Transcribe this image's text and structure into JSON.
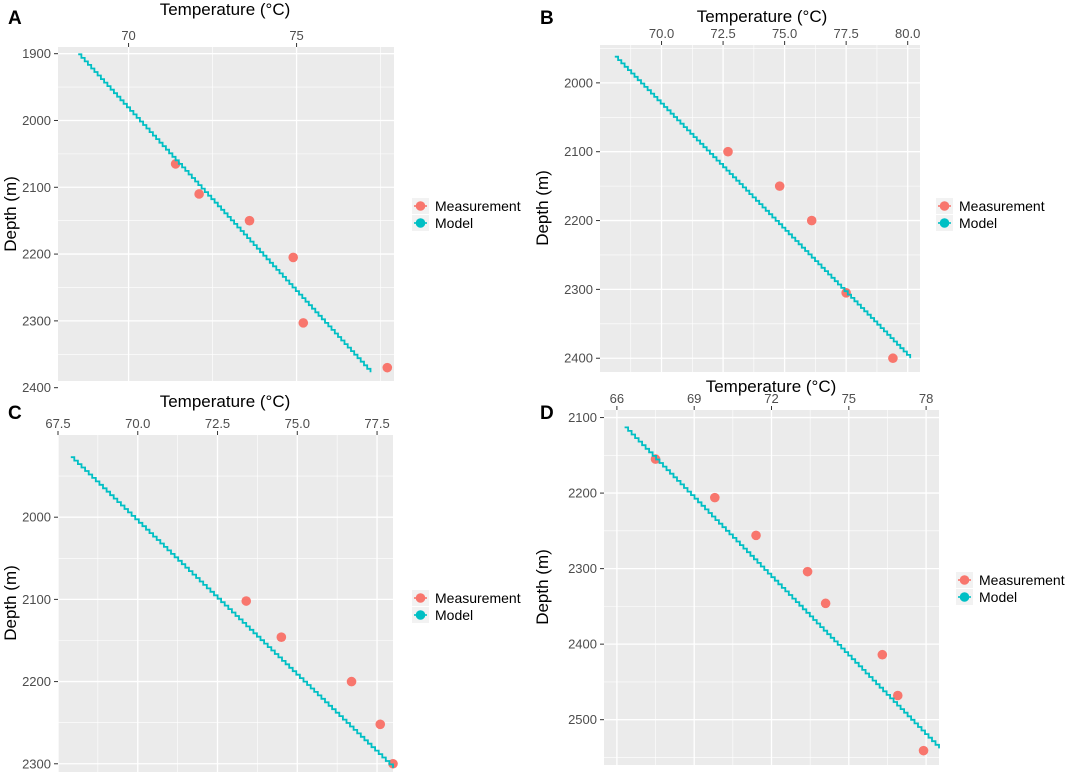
{
  "colors": {
    "measurement": "#F8766D",
    "model": "#00BFC4",
    "panel_bg": "#EBEBEB",
    "grid": "#FFFFFF"
  },
  "legend": {
    "measurement": "Measurement",
    "model": "Model"
  },
  "chart_data": [
    {
      "type": "scatter",
      "label": "A",
      "xlabel": "Temperature (°C)",
      "ylabel": "Depth (m)",
      "xlim": [
        67.9,
        77.9
      ],
      "ylim": [
        1890,
        2390
      ],
      "y_reversed": true,
      "x_ticks": [
        70,
        75
      ],
      "x_tick_labels": [
        "70",
        "75"
      ],
      "y_ticks": [
        1900,
        2000,
        2100,
        2200,
        2300,
        2400
      ],
      "y_tick_labels": [
        "1900",
        "2000",
        "2100",
        "2200",
        "2300",
        "2400"
      ],
      "legend_position": "right",
      "series": [
        {
          "name": "Measurement",
          "kind": "points",
          "x": [
            71.4,
            72.1,
            73.6,
            74.9,
            75.2,
            77.7
          ],
          "y": [
            2065,
            2110,
            2150,
            2205,
            2303,
            2370
          ]
        },
        {
          "name": "Model",
          "kind": "line",
          "x": [
            68.5,
            77.2
          ],
          "y": [
            1901,
            2377
          ]
        }
      ]
    },
    {
      "type": "scatter",
      "label": "B",
      "xlabel": "Temperature (°C)",
      "ylabel": "Depth (m)",
      "xlim": [
        67.5,
        80.5
      ],
      "ylim": [
        1945,
        2420
      ],
      "y_reversed": true,
      "x_ticks": [
        70.0,
        72.5,
        75.0,
        77.5,
        80.0
      ],
      "x_tick_labels": [
        "70.0",
        "72.5",
        "75.0",
        "77.5",
        "80.0"
      ],
      "y_ticks": [
        2000,
        2100,
        2200,
        2300,
        2400
      ],
      "y_tick_labels": [
        "2000",
        "2100",
        "2200",
        "2300",
        "2400"
      ],
      "legend_position": "right",
      "series": [
        {
          "name": "Measurement",
          "kind": "points",
          "x": [
            72.7,
            74.8,
            76.1,
            77.5,
            79.4
          ],
          "y": [
            2100,
            2150,
            2200,
            2305,
            2400
          ]
        },
        {
          "name": "Model",
          "kind": "line",
          "x": [
            68.1,
            80.1
          ],
          "y": [
            1962,
            2400
          ]
        }
      ]
    },
    {
      "type": "scatter",
      "label": "C",
      "xlabel": "Temperature (°C)",
      "ylabel": "Depth (m)",
      "xlim": [
        67.5,
        78.0
      ],
      "ylim": [
        1900,
        2310
      ],
      "y_reversed": true,
      "x_ticks": [
        67.5,
        70.0,
        72.5,
        75.0,
        77.5
      ],
      "x_tick_labels": [
        "67.5",
        "70.0",
        "72.5",
        "75.0",
        "77.5"
      ],
      "y_ticks": [
        2000,
        2100,
        2200,
        2300
      ],
      "y_tick_labels": [
        "2000",
        "2100",
        "2200",
        "2300"
      ],
      "legend_position": "right",
      "series": [
        {
          "name": "Measurement",
          "kind": "points",
          "x": [
            73.4,
            74.5,
            76.7,
            77.6,
            78.0
          ],
          "y": [
            2102,
            2146,
            2200,
            2252,
            2300
          ]
        },
        {
          "name": "Model",
          "kind": "line",
          "x": [
            67.9,
            78.0
          ],
          "y": [
            1927,
            2305
          ]
        }
      ]
    },
    {
      "type": "scatter",
      "label": "D",
      "xlabel": "Temperature (°C)",
      "ylabel": "Depth (m)",
      "xlim": [
        65.5,
        78.5
      ],
      "ylim": [
        2090,
        2560
      ],
      "y_reversed": true,
      "x_ticks": [
        66,
        69,
        72,
        75,
        78
      ],
      "x_tick_labels": [
        "66",
        "69",
        "72",
        "75",
        "78"
      ],
      "y_ticks": [
        2100,
        2200,
        2300,
        2400,
        2500
      ],
      "y_tick_labels": [
        "2100",
        "2200",
        "2300",
        "2400",
        "2500"
      ],
      "legend_position": "right",
      "series": [
        {
          "name": "Measurement",
          "kind": "points",
          "x": [
            67.5,
            69.8,
            71.4,
            73.4,
            74.1,
            76.3,
            76.9,
            77.9
          ],
          "y": [
            2155,
            2206,
            2256,
            2304,
            2346,
            2414,
            2468,
            2541
          ]
        },
        {
          "name": "Model",
          "kind": "line",
          "x": [
            66.3,
            78.5
          ],
          "y": [
            2113,
            2538
          ]
        }
      ]
    }
  ]
}
